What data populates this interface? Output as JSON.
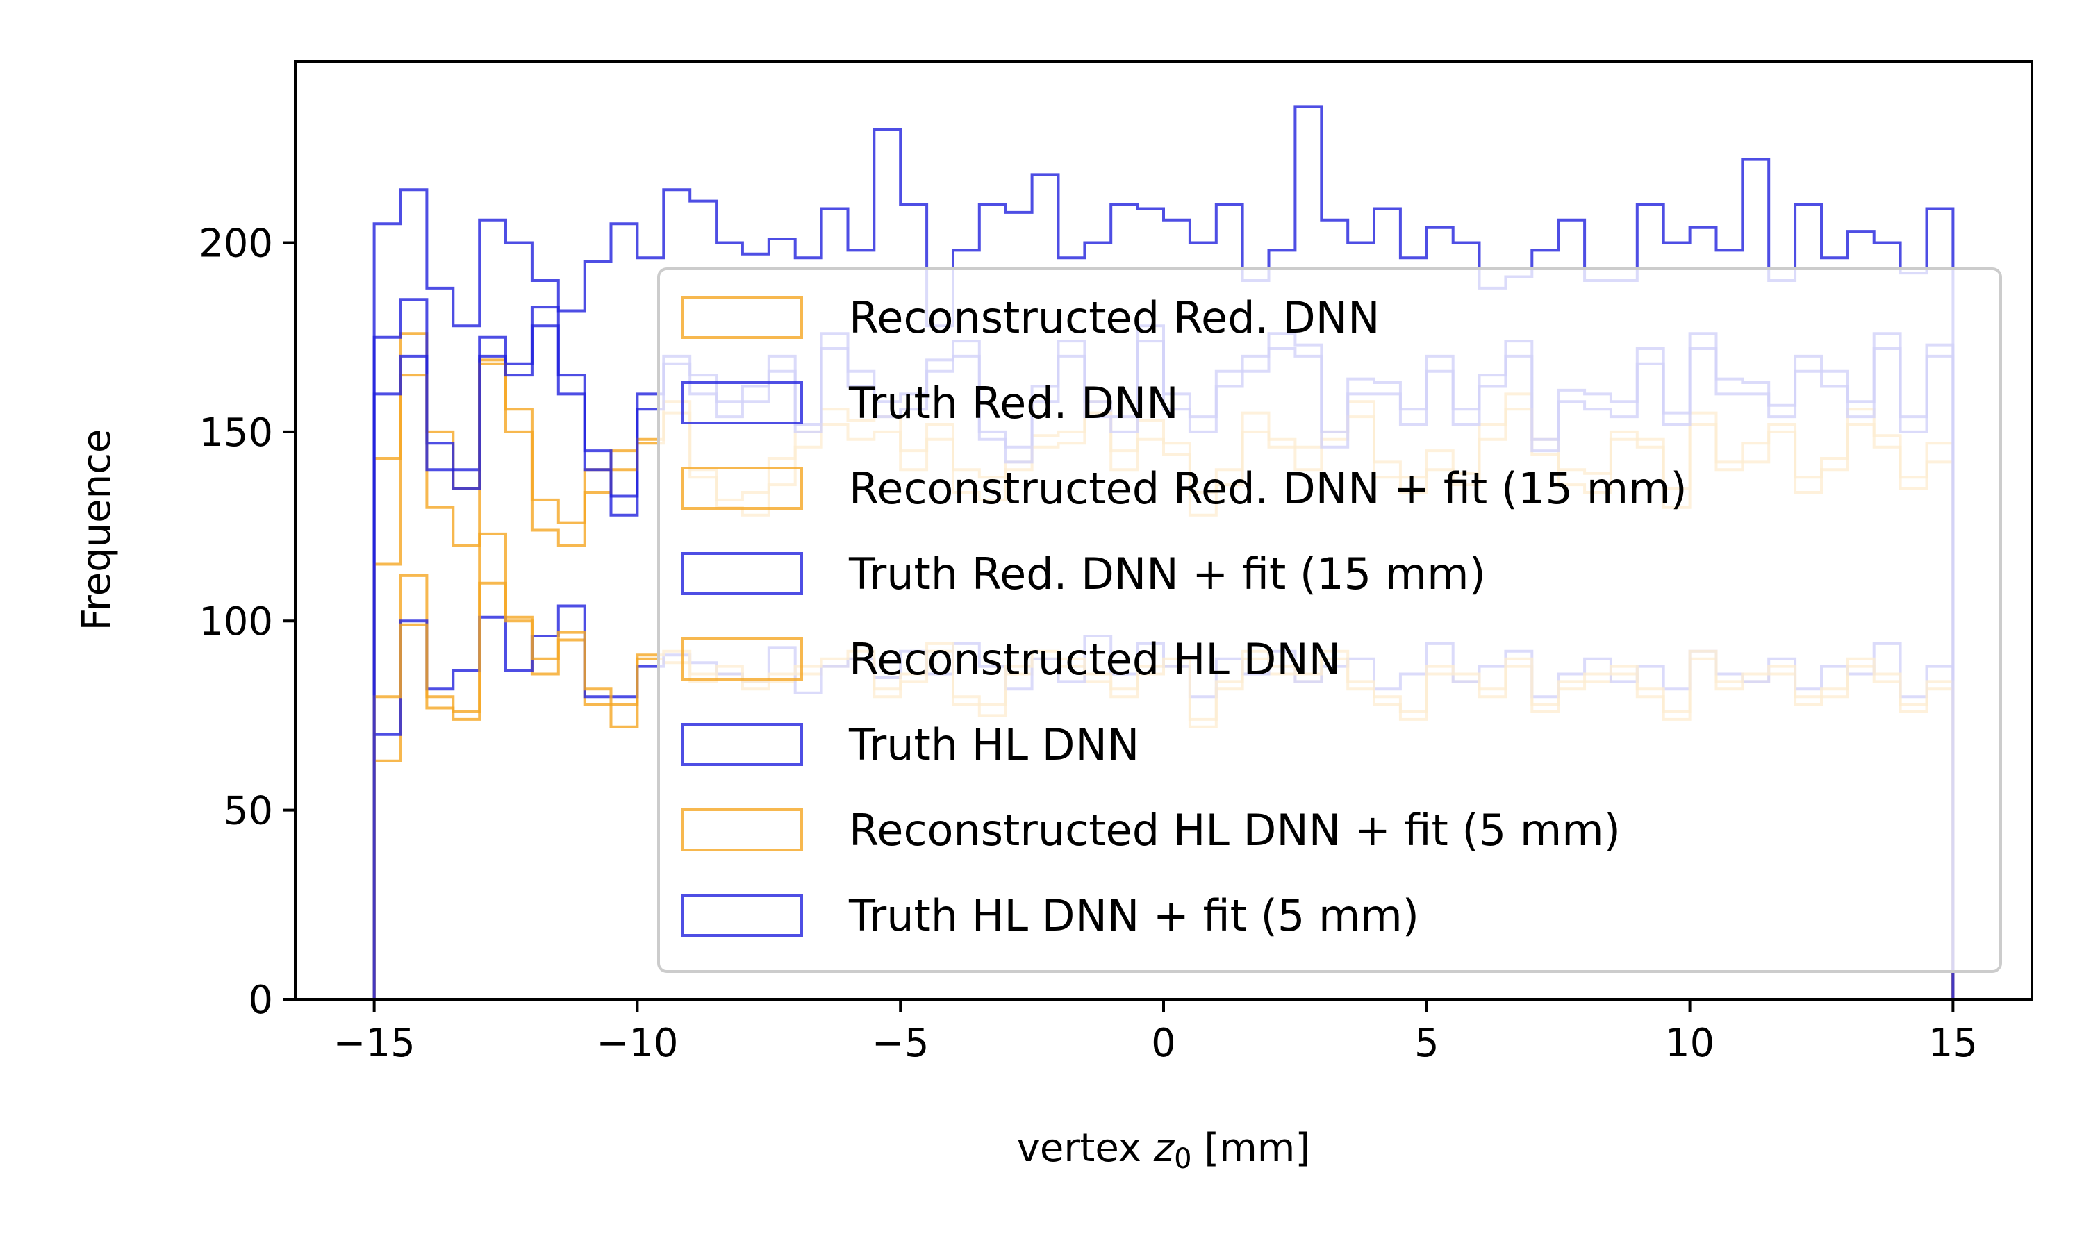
{
  "chart_data": {
    "type": "histogram",
    "xlabel": "vertex z0 [mm]",
    "xlabel_parts": {
      "prefix": "vertex ",
      "var": "z",
      "sub": "0",
      "suffix": " [mm]"
    },
    "ylabel": "Frequence",
    "xlim": [
      -16.5,
      16.5
    ],
    "ylim": [
      0,
      248
    ],
    "x_ticks": [
      -15,
      -10,
      -5,
      0,
      5,
      10,
      15
    ],
    "x_tick_labels": [
      "−15",
      "−10",
      "−5",
      "0",
      "5",
      "10",
      "15"
    ],
    "y_ticks": [
      0,
      50,
      100,
      150,
      200
    ],
    "y_tick_labels": [
      "0",
      "50",
      "100",
      "150",
      "200"
    ],
    "bins": {
      "start": -15,
      "end": 15,
      "count": 60
    },
    "legend_position": "upper right",
    "series": [
      {
        "name": "Reconstructed Red. DNN",
        "color": "#f5a623",
        "values": [
          143,
          176,
          150,
          135,
          169,
          156,
          132,
          126,
          140,
          145,
          147,
          158,
          140,
          132,
          134,
          143,
          150,
          156,
          153,
          154,
          145,
          152,
          140,
          138,
          142,
          149,
          150,
          158,
          145,
          153,
          147,
          134,
          140,
          155,
          148,
          146,
          150,
          158,
          142,
          138,
          145,
          139,
          152,
          160,
          148,
          140,
          139,
          150,
          148,
          135,
          155,
          142,
          147,
          152,
          138,
          143,
          156,
          149,
          138,
          147
        ]
      },
      {
        "name": "Truth Red. DNN",
        "color": "#2222dd",
        "values": [
          175,
          185,
          147,
          140,
          175,
          168,
          183,
          165,
          145,
          133,
          160,
          170,
          165,
          158,
          162,
          170,
          152,
          176,
          166,
          158,
          160,
          169,
          174,
          150,
          146,
          162,
          174,
          158,
          154,
          178,
          160,
          154,
          166,
          170,
          176,
          173,
          150,
          164,
          163,
          156,
          170,
          156,
          165,
          174,
          148,
          161,
          160,
          158,
          172,
          155,
          176,
          164,
          163,
          157,
          170,
          166,
          158,
          176,
          154,
          173
        ]
      },
      {
        "name": "Reconstructed Red. DNN + fit (15 mm)",
        "color": "#f5a623",
        "values": [
          115,
          165,
          130,
          120,
          168,
          150,
          124,
          120,
          134,
          140,
          148,
          155,
          138,
          130,
          128,
          136,
          146,
          152,
          148,
          150,
          140,
          148,
          134,
          132,
          140,
          146,
          147,
          155,
          140,
          148,
          144,
          128,
          136,
          150,
          146,
          140,
          148,
          154,
          138,
          134,
          140,
          136,
          148,
          156,
          144,
          136,
          134,
          148,
          146,
          130,
          152,
          140,
          142,
          150,
          134,
          140,
          152,
          146,
          135,
          142
        ]
      },
      {
        "name": "Truth Red. DNN + fit (15 mm)",
        "color": "#2222dd",
        "values": [
          160,
          170,
          140,
          135,
          170,
          165,
          178,
          160,
          140,
          128,
          156,
          168,
          160,
          154,
          158,
          166,
          150,
          172,
          162,
          154,
          156,
          166,
          170,
          148,
          142,
          158,
          170,
          154,
          150,
          174,
          156,
          150,
          162,
          166,
          172,
          170,
          146,
          160,
          160,
          152,
          166,
          152,
          162,
          170,
          145,
          158,
          156,
          154,
          168,
          152,
          172,
          160,
          160,
          154,
          166,
          162,
          154,
          172,
          150,
          170
        ]
      },
      {
        "name": "Reconstructed HL DNN",
        "color": "#f5a623",
        "values": [
          63,
          112,
          77,
          74,
          123,
          101,
          86,
          95,
          78,
          72,
          90,
          89,
          84,
          86,
          82,
          84,
          86,
          88,
          90,
          80,
          84,
          92,
          78,
          75,
          86,
          90,
          88,
          84,
          80,
          86,
          88,
          72,
          82,
          90,
          86,
          84,
          90,
          82,
          78,
          74,
          86,
          84,
          80,
          88,
          76,
          82,
          84,
          86,
          80,
          74,
          90,
          82,
          84,
          86,
          78,
          80,
          88,
          84,
          76,
          82
        ]
      },
      {
        "name": "Truth HL DNN",
        "color": "#2222dd",
        "values": [
          70,
          100,
          82,
          87,
          101,
          87,
          96,
          104,
          80,
          80,
          88,
          91,
          89,
          86,
          84,
          93,
          81,
          88,
          90,
          85,
          92,
          86,
          94,
          88,
          82,
          90,
          84,
          96,
          86,
          94,
          88,
          80,
          90,
          86,
          92,
          84,
          88,
          90,
          82,
          86,
          94,
          84,
          88,
          92,
          80,
          86,
          90,
          84,
          88,
          82,
          92,
          86,
          84,
          90,
          82,
          88,
          86,
          94,
          80,
          88
        ]
      },
      {
        "name": "Reconstructed HL DNN + fit (5 mm)",
        "color": "#f5a623",
        "values": [
          80,
          99,
          80,
          76,
          110,
          100,
          90,
          97,
          82,
          78,
          91,
          92,
          86,
          88,
          84,
          86,
          88,
          90,
          92,
          82,
          86,
          94,
          80,
          78,
          88,
          92,
          90,
          86,
          82,
          88,
          90,
          74,
          84,
          92,
          88,
          86,
          92,
          84,
          80,
          76,
          88,
          86,
          82,
          90,
          78,
          84,
          86,
          88,
          82,
          76,
          92,
          84,
          86,
          88,
          80,
          82,
          90,
          86,
          78,
          84
        ]
      },
      {
        "name": "Truth HL DNN + fit (5 mm)",
        "color": "#2222dd",
        "values": [
          205,
          214,
          188,
          178,
          206,
          200,
          190,
          182,
          195,
          205,
          196,
          214,
          211,
          200,
          197,
          201,
          196,
          209,
          198,
          230,
          210,
          178,
          198,
          210,
          208,
          218,
          196,
          200,
          210,
          209,
          206,
          200,
          210,
          190,
          198,
          236,
          206,
          200,
          209,
          196,
          204,
          200,
          188,
          191,
          198,
          206,
          190,
          190,
          210,
          200,
          204,
          198,
          222,
          190,
          210,
          196,
          203,
          200,
          192,
          209
        ]
      }
    ]
  }
}
